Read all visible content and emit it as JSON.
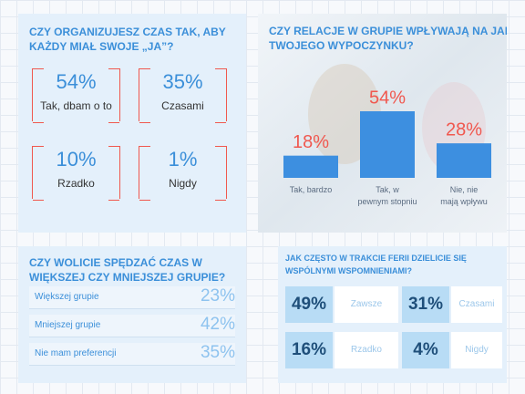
{
  "panel1": {
    "title": "CZY ORGANIZUJESZ CZAS TAK, ABY KAŻDY MIAŁ SWOJE „JA”?",
    "items": [
      {
        "value": "54%",
        "label": "Tak, dbam o to"
      },
      {
        "value": "35%",
        "label": "Czasami"
      },
      {
        "value": "10%",
        "label": "Rzadko"
      },
      {
        "value": "1%",
        "label": "Nigdy"
      }
    ]
  },
  "chart_data": {
    "type": "bar",
    "title": "CZY RELACJE W GRUPIE WPŁYWAJĄ NA JAKOŚĆ TWOJEGO WYPOCZYNKU?",
    "categories": [
      "Tak, bardzo",
      "Tak, w pewnym stopniu",
      "Nie, nie mają wpływu"
    ],
    "values": [
      18,
      54,
      28
    ],
    "value_labels": [
      "18%",
      "54%",
      "28%"
    ],
    "color": "#3d8fe0",
    "label_color": "#f0584f"
  },
  "panel3": {
    "title": "CZY WOLICIE SPĘDZAĆ CZAS W WIĘKSZEJ CZY MNIEJSZEJ GRUPIE?",
    "rows": [
      {
        "label": "Większej grupie",
        "value": "23%"
      },
      {
        "label": "Mniejszej grupie",
        "value": "42%"
      },
      {
        "label": "Nie mam preferencji",
        "value": "35%"
      }
    ]
  },
  "panel4": {
    "title": "JAK CZĘSTO W TRAKCIE FERII DZIELICIE SIĘ WSPÓLNYMI WSPOMNIENIAMI?",
    "items": [
      {
        "value": "49%",
        "label": "Zawsze"
      },
      {
        "value": "31%",
        "label": "Czasami"
      },
      {
        "value": "16%",
        "label": "Rzadko"
      },
      {
        "value": "4%",
        "label": "Nigdy"
      }
    ]
  }
}
